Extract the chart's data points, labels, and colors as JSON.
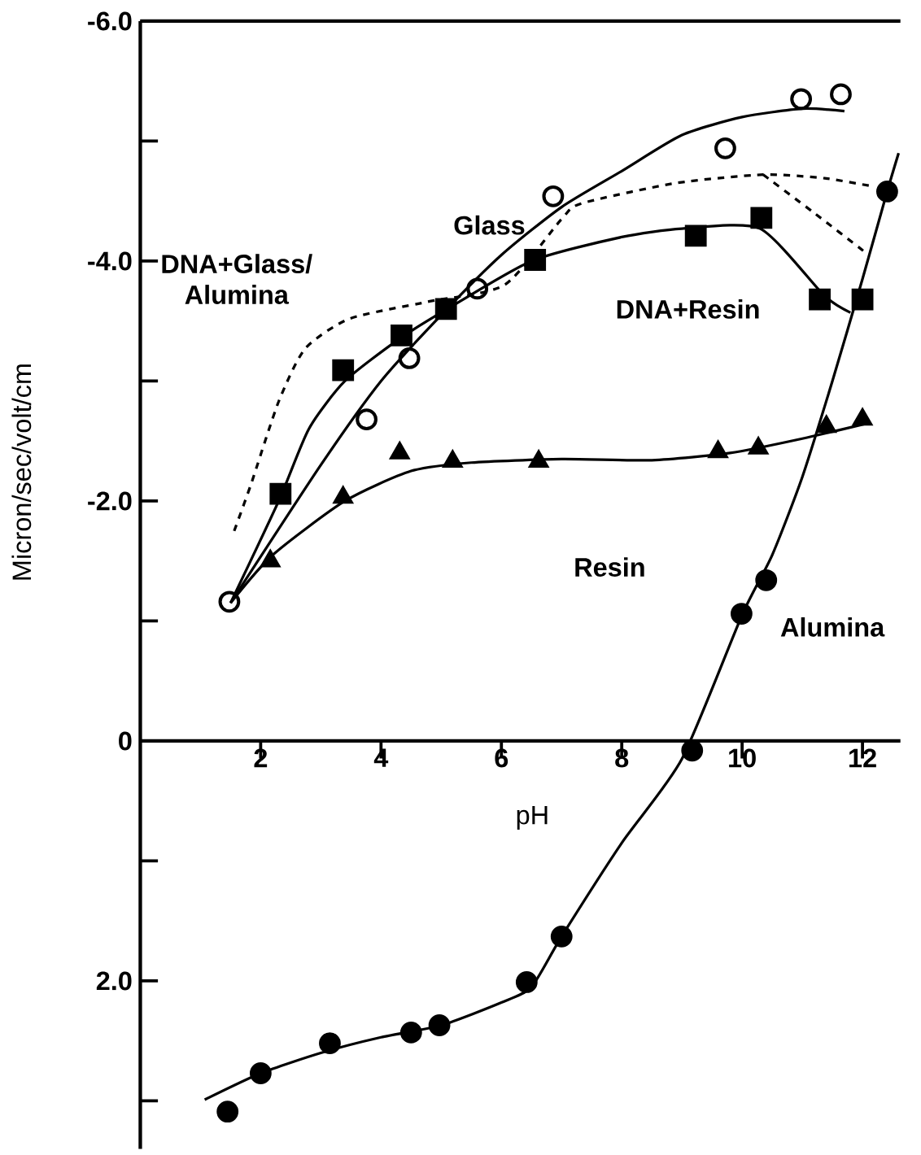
{
  "chart_data": {
    "type": "scatter",
    "xlabel": "pH",
    "ylabel": "Micron/sec/volt/cm",
    "xlim": [
      0,
      12.63
    ],
    "ylim": [
      3.4,
      -6.0
    ],
    "xticks": [
      2,
      4,
      6,
      8,
      10,
      12
    ],
    "yticks": [
      {
        "value": -6,
        "label": "-6.0"
      },
      {
        "value": -5,
        "label": null
      },
      {
        "value": -4,
        "label": "-4.0"
      },
      {
        "value": -3,
        "label": null
      },
      {
        "value": -2,
        "label": "-2.0"
      },
      {
        "value": -1,
        "label": null
      },
      0,
      {
        "value": 1,
        "label": null
      },
      {
        "value": 2,
        "label": "2.0"
      },
      {
        "value": 3,
        "label": null
      }
    ],
    "series": [
      {
        "marker": "open circle",
        "color": "#000000",
        "x": [
          1.48,
          3.76,
          4.47,
          5.6,
          6.86,
          9.72,
          10.98,
          11.64
        ],
        "values": [
          -1.16,
          -2.68,
          -3.19,
          -3.77,
          -4.54,
          -4.94,
          -5.35,
          -5.39
        ]
      },
      {
        "type": "line",
        "line_style": "solid",
        "color": "#000000",
        "x": [
          1.5,
          3,
          4,
          5,
          6,
          7,
          8,
          9,
          10,
          11,
          11.7
        ],
        "values": [
          -1.15,
          -2.3,
          -3.0,
          -3.55,
          -4.05,
          -4.45,
          -4.75,
          -5.05,
          -5.2,
          -5.27,
          -5.25
        ]
      },
      {
        "marker": "square",
        "color": "#000000",
        "x": [
          2.33,
          3.37,
          4.34,
          5.08,
          6.56,
          9.23,
          10.32,
          11.29,
          12.0
        ],
        "values": [
          -2.06,
          -3.09,
          -3.38,
          -3.6,
          -4.01,
          -4.21,
          -4.36,
          -3.68,
          -3.68
        ]
      },
      {
        "type": "line",
        "line_style": "solid",
        "color": "#000000",
        "x": [
          1.5,
          2.3,
          2.8,
          3.4,
          4.3,
          5.1,
          6.5,
          8,
          9,
          10.3,
          11.37,
          11.8
        ],
        "values": [
          -1.15,
          -2.0,
          -2.6,
          -3.0,
          -3.35,
          -3.6,
          -4.0,
          -4.2,
          -4.27,
          -4.27,
          -3.71,
          -3.57
        ]
      },
      {
        "type": "line",
        "line_style": "dashed",
        "color": "#000000",
        "x": [
          1.56,
          1.84,
          2.3,
          2.74,
          3.48,
          4.77,
          6.05,
          7.0,
          7.33,
          8.9,
          10.35,
          11.37,
          12.2
        ],
        "values": [
          -1.75,
          -2.14,
          -2.83,
          -3.27,
          -3.52,
          -3.66,
          -3.8,
          -4.35,
          -4.48,
          -4.65,
          -4.72,
          -4.69,
          -4.62
        ]
      },
      {
        "type": "line",
        "line_style": "dashed",
        "color": "#000000",
        "x": [
          10.35,
          11.2,
          12.08
        ],
        "values": [
          -4.72,
          -4.4,
          -4.06
        ]
      },
      {
        "marker": "triangle",
        "color": "#000000",
        "x": [
          2.16,
          3.37,
          4.31,
          5.19,
          6.62,
          9.6,
          10.27,
          11.4,
          12.0
        ],
        "values": [
          -1.5,
          -2.03,
          -2.4,
          -2.33,
          -2.33,
          -2.41,
          -2.44,
          -2.62,
          -2.68
        ]
      },
      {
        "type": "line",
        "line_style": "solid",
        "color": "#000000",
        "x": [
          1.5,
          2.2,
          3.4,
          4.5,
          5.5,
          7,
          8.5,
          9.8,
          11,
          12.1
        ],
        "values": [
          -1.15,
          -1.55,
          -2.0,
          -2.25,
          -2.32,
          -2.35,
          -2.34,
          -2.4,
          -2.52,
          -2.65
        ]
      },
      {
        "marker": "circle",
        "color": "#000000",
        "x": [
          1.45,
          2.0,
          3.15,
          4.5,
          4.97,
          6.42,
          7.0,
          9.17,
          9.99,
          10.4,
          12.41
        ],
        "values": [
          3.09,
          2.77,
          2.52,
          2.43,
          2.37,
          2.01,
          1.63,
          0.08,
          -1.06,
          -1.34,
          -4.58
        ]
      },
      {
        "type": "line",
        "line_style": "solid",
        "color": "#000000",
        "x": [
          1.07,
          2,
          3,
          4,
          5,
          6,
          6.5,
          7,
          8,
          9,
          10,
          10.5,
          11,
          11.5,
          12,
          12.41,
          12.6
        ],
        "values": [
          2.99,
          2.77,
          2.6,
          2.47,
          2.37,
          2.18,
          2.05,
          1.63,
          0.85,
          0.15,
          -1.05,
          -1.55,
          -2.2,
          -3.0,
          -3.85,
          -4.58,
          -4.9
        ]
      }
    ],
    "annotations": [
      "Glass",
      "DNA+Glass/ Alumina",
      "DNA+Resin",
      "Resin",
      "Alumina"
    ]
  }
}
